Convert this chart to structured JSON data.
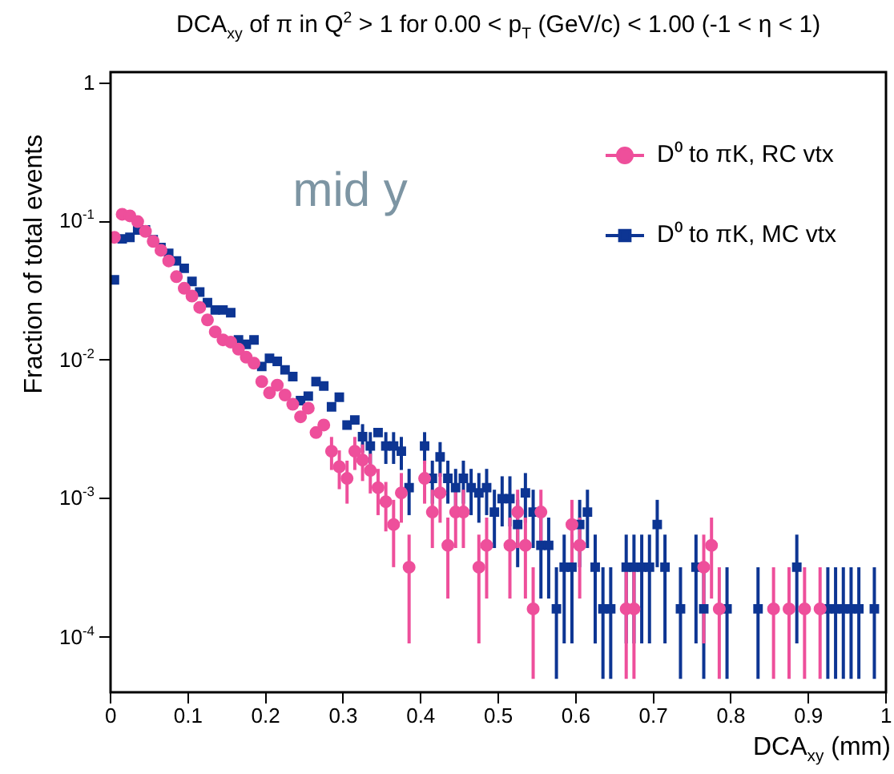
{
  "chart_data": {
    "type": "scatter",
    "title": "DCA$_{xy}$ of π in Q$^{2}$ > 1 for 0.00 < p$_{T}$ (GeV/c) < 1.00 (-1 < η < 1)",
    "xlabel": "DCA$_{xy}$ (mm)",
    "ylabel": "Fraction of total events",
    "annotations": [
      "mid y"
    ],
    "log": "y",
    "grid": false,
    "legend": "top right",
    "xlim": [
      0,
      1
    ],
    "xticks": [
      0,
      0.1,
      0.2,
      0.3,
      0.4,
      0.5,
      0.6,
      0.7,
      0.8,
      0.9,
      1
    ],
    "ylim": [
      4e-05,
      1.2
    ],
    "yticks": [
      {
        "value": 0.0001,
        "label": "10$^{-4}$"
      },
      {
        "value": 0.001,
        "label": "10$^{-3}$"
      },
      {
        "value": 0.01,
        "label": "10$^{-2}$"
      },
      {
        "value": 0.1,
        "label": "10$^{-1}$"
      },
      1
    ],
    "series": [
      {
        "name": "D⁰ to πK, RC vtx",
        "color": "#ee4f9b",
        "marker": "circle",
        "x": [
          0.005,
          0.015,
          0.025,
          0.035,
          0.045,
          0.055,
          0.065,
          0.075,
          0.085,
          0.095,
          0.105,
          0.115,
          0.125,
          0.135,
          0.145,
          0.155,
          0.165,
          0.175,
          0.185,
          0.195,
          0.205,
          0.215,
          0.225,
          0.235,
          0.245,
          0.255,
          0.265,
          0.275,
          0.285,
          0.295,
          0.305,
          0.315,
          0.325,
          0.335,
          0.345,
          0.355,
          0.365,
          0.375,
          0.385,
          0.405,
          0.415,
          0.425,
          0.435,
          0.445,
          0.455,
          0.475,
          0.485,
          0.515,
          0.525,
          0.535,
          0.545,
          0.555,
          0.595,
          0.605,
          0.665,
          0.675,
          0.765,
          0.775,
          0.785,
          0.855,
          0.875,
          0.895,
          0.915
        ],
        "values": [
          0.077,
          0.113,
          0.11,
          0.1,
          0.085,
          0.072,
          0.062,
          0.052,
          0.04,
          0.033,
          0.029,
          0.024,
          0.0195,
          0.016,
          0.014,
          0.0135,
          0.012,
          0.0105,
          0.0095,
          0.007,
          0.0058,
          0.0066,
          0.0056,
          0.0048,
          0.0039,
          0.0045,
          0.003,
          0.0034,
          0.0022,
          0.0017,
          0.0014,
          0.0022,
          0.0019,
          0.0016,
          0.0012,
          0.00095,
          0.00065,
          0.0011,
          0.00032,
          0.0014,
          0.0008,
          0.0011,
          0.00046,
          0.0008,
          0.0008,
          0.00032,
          0.00046,
          0.00046,
          0.0008,
          0.00046,
          0.00016,
          0.0008,
          0.00065,
          0.00046,
          0.00016,
          0.00016,
          0.00032,
          0.00046,
          0.00016,
          0.00016,
          0.00016,
          0.00016,
          0.00016
        ],
        "errors": [
          null,
          null,
          null,
          null,
          null,
          null,
          null,
          null,
          null,
          null,
          null,
          null,
          null,
          null,
          null,
          null,
          null,
          null,
          null,
          null,
          null,
          null,
          null,
          null,
          null,
          null,
          null,
          null,
          [
            0.00161,
            0.00279
          ],
          [
            0.00117,
            0.00223
          ],
          [
            0.00092,
            0.00188
          ],
          [
            0.00161,
            0.00279
          ],
          [
            0.00134,
            0.00246
          ],
          [
            0.00109,
            0.00211
          ],
          [
            0.00076,
            0.00164
          ],
          [
            0.00058,
            0.00132
          ],
          [
            0.00032,
            0.00098
          ],
          [
            0.00067,
            0.00153
          ],
          [
            9e-05,
            0.00055
          ],
          [
            0.00092,
            0.00188
          ],
          [
            0.00044,
            0.00116
          ],
          [
            0.00067,
            0.00153
          ],
          [
            0.00019,
            0.00073
          ],
          [
            0.00044,
            0.00116
          ],
          [
            0.00044,
            0.00116
          ],
          [
            9e-05,
            0.00055
          ],
          [
            0.00019,
            0.00073
          ],
          [
            0.00019,
            0.00073
          ],
          [
            0.00044,
            0.00116
          ],
          [
            0.00019,
            0.00073
          ],
          [
            5e-05,
            0.00032
          ],
          [
            0.00044,
            0.00116
          ],
          [
            0.00032,
            0.00098
          ],
          [
            0.00019,
            0.00073
          ],
          [
            5e-05,
            0.00032
          ],
          [
            5e-05,
            0.00032
          ],
          [
            9e-05,
            0.00055
          ],
          [
            0.00019,
            0.00073
          ],
          [
            5e-05,
            0.00032
          ],
          [
            5e-05,
            0.00032
          ],
          [
            5e-05,
            0.00032
          ],
          [
            5e-05,
            0.00032
          ],
          [
            5e-05,
            0.00032
          ]
        ]
      },
      {
        "name": "D⁰ to πK, MC vtx",
        "color": "#0d3593",
        "marker": "square",
        "x": [
          0.005,
          0.015,
          0.025,
          0.035,
          0.045,
          0.055,
          0.065,
          0.075,
          0.085,
          0.095,
          0.105,
          0.115,
          0.125,
          0.135,
          0.145,
          0.155,
          0.165,
          0.175,
          0.185,
          0.195,
          0.205,
          0.215,
          0.225,
          0.235,
          0.245,
          0.255,
          0.265,
          0.275,
          0.285,
          0.295,
          0.305,
          0.315,
          0.325,
          0.335,
          0.345,
          0.355,
          0.365,
          0.375,
          0.385,
          0.405,
          0.415,
          0.425,
          0.435,
          0.445,
          0.455,
          0.465,
          0.475,
          0.485,
          0.495,
          0.505,
          0.515,
          0.525,
          0.535,
          0.545,
          0.555,
          0.565,
          0.575,
          0.585,
          0.595,
          0.605,
          0.615,
          0.625,
          0.635,
          0.645,
          0.665,
          0.675,
          0.685,
          0.695,
          0.705,
          0.715,
          0.735,
          0.755,
          0.765,
          0.795,
          0.835,
          0.885,
          0.925,
          0.935,
          0.945,
          0.955,
          0.965,
          0.985
        ],
        "values": [
          0.038,
          0.075,
          0.077,
          0.087,
          0.087,
          0.074,
          0.065,
          0.059,
          0.052,
          0.046,
          0.037,
          0.031,
          0.026,
          0.023,
          0.023,
          0.022,
          0.014,
          0.013,
          0.014,
          0.009,
          0.0103,
          0.0098,
          0.0085,
          0.0076,
          0.0051,
          0.0055,
          0.007,
          0.0065,
          0.0046,
          0.0054,
          0.0034,
          0.0037,
          0.0028,
          0.0024,
          0.003,
          0.0024,
          0.0024,
          0.0022,
          0.0012,
          0.0024,
          0.0014,
          0.002,
          0.0014,
          0.0012,
          0.0014,
          0.0012,
          0.0011,
          0.0012,
          0.0008,
          0.001,
          0.001,
          0.00065,
          0.0011,
          0.0008,
          0.00046,
          0.00046,
          0.00016,
          0.00032,
          0.00032,
          0.00065,
          0.0008,
          0.00032,
          0.00016,
          0.00016,
          0.00032,
          0.00032,
          0.00032,
          0.00032,
          0.00065,
          0.00032,
          0.00016,
          0.00032,
          0.00016,
          0.00016,
          0.00016,
          0.00032,
          0.00016,
          0.00016,
          0.00016,
          0.00016,
          0.00016,
          0.00016
        ],
        "errors": [
          null,
          null,
          null,
          null,
          null,
          null,
          null,
          null,
          null,
          null,
          null,
          null,
          null,
          null,
          null,
          null,
          null,
          null,
          null,
          null,
          null,
          null,
          null,
          null,
          null,
          null,
          null,
          null,
          null,
          null,
          null,
          null,
          [
            0.00215,
            0.00345
          ],
          [
            0.00178,
            0.00302
          ],
          null,
          [
            0.00178,
            0.00302
          ],
          [
            0.00178,
            0.00302
          ],
          [
            0.00161,
            0.00279
          ],
          [
            0.00076,
            0.00164
          ],
          [
            0.00178,
            0.00302
          ],
          [
            0.00092,
            0.00188
          ],
          [
            0.00144,
            0.00256
          ],
          [
            0.00092,
            0.00188
          ],
          [
            0.00076,
            0.00164
          ],
          [
            0.00092,
            0.00188
          ],
          [
            0.00076,
            0.00164
          ],
          [
            0.00067,
            0.00153
          ],
          [
            0.00076,
            0.00164
          ],
          [
            0.00044,
            0.00116
          ],
          [
            0.00063,
            0.00145
          ],
          [
            0.00063,
            0.00145
          ],
          [
            0.00032,
            0.00098
          ],
          [
            0.00067,
            0.00153
          ],
          [
            0.00044,
            0.00116
          ],
          [
            0.00019,
            0.00073
          ],
          [
            0.00019,
            0.00073
          ],
          [
            5e-05,
            0.00032
          ],
          [
            9e-05,
            0.00055
          ],
          [
            9e-05,
            0.00055
          ],
          [
            0.00032,
            0.00098
          ],
          [
            0.00044,
            0.00116
          ],
          [
            9e-05,
            0.00055
          ],
          [
            5e-05,
            0.00032
          ],
          [
            5e-05,
            0.00032
          ],
          [
            9e-05,
            0.00055
          ],
          [
            9e-05,
            0.00055
          ],
          [
            9e-05,
            0.00055
          ],
          [
            9e-05,
            0.00055
          ],
          [
            0.00032,
            0.00098
          ],
          [
            9e-05,
            0.00055
          ],
          [
            5e-05,
            0.00032
          ],
          [
            9e-05,
            0.00055
          ],
          [
            5e-05,
            0.00032
          ],
          [
            5e-05,
            0.00032
          ],
          [
            5e-05,
            0.00032
          ],
          [
            9e-05,
            0.00055
          ],
          [
            5e-05,
            0.00032
          ],
          [
            5e-05,
            0.00032
          ],
          [
            5e-05,
            0.00032
          ],
          [
            5e-05,
            0.00032
          ],
          [
            5e-05,
            0.00032
          ],
          [
            5e-05,
            0.00032
          ]
        ]
      }
    ]
  }
}
